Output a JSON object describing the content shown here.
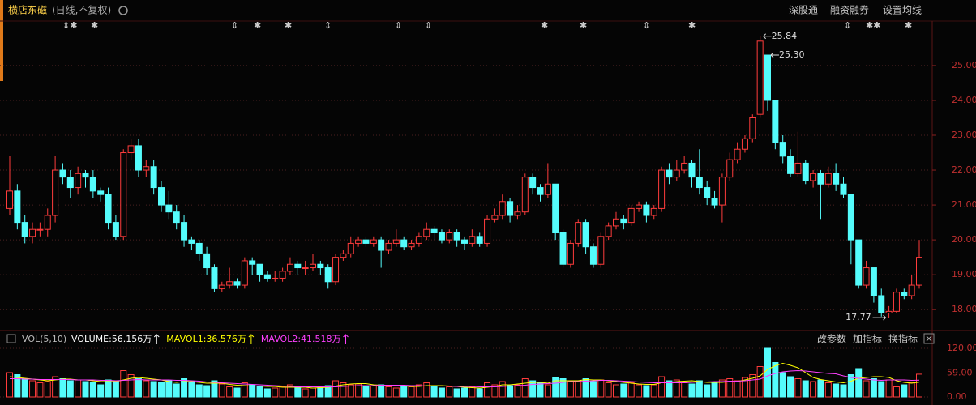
{
  "header": {
    "name": "横店东磁",
    "period": "(日线,不复权)",
    "links": [
      "深股通",
      "融资融券",
      "设置均线"
    ]
  },
  "chart_data": {
    "type": "candlestick",
    "up_color": "#ff3c3c",
    "down_color": "#54fcfc",
    "grid": true,
    "ylim": [
      17.47,
      26.23
    ],
    "yticks": [
      {
        "value": 18,
        "label": "18.00"
      },
      {
        "value": 19,
        "label": "19.00"
      },
      {
        "value": 20,
        "label": "20.00"
      },
      {
        "value": 21,
        "label": "21.00"
      },
      {
        "value": 22,
        "label": "22.00"
      },
      {
        "value": 23,
        "label": "23.00"
      },
      {
        "value": 24,
        "label": "24.00"
      },
      {
        "value": 25,
        "label": "25.00"
      }
    ],
    "open": [
      20.9,
      21.4,
      20.5,
      20.1,
      20.3,
      20.3,
      20.7,
      22.0,
      21.8,
      21.5,
      21.9,
      21.8,
      21.4,
      21.3,
      20.5,
      20.1,
      22.5,
      22.7,
      22.0,
      22.1,
      21.5,
      21.0,
      20.8,
      20.5,
      20.0,
      19.9,
      19.6,
      19.2,
      18.6,
      18.7,
      18.8,
      18.7,
      19.4,
      19.3,
      19.0,
      18.9,
      18.9,
      19.1,
      19.3,
      19.2,
      19.2,
      19.3,
      19.2,
      18.8,
      19.5,
      19.6,
      19.9,
      20.0,
      19.9,
      20.0,
      19.7,
      19.9,
      20.0,
      19.8,
      19.9,
      20.1,
      20.3,
      20.2,
      20.0,
      20.2,
      20.0,
      19.9,
      20.1,
      19.9,
      20.6,
      20.7,
      21.1,
      20.7,
      20.8,
      21.8,
      21.5,
      21.3,
      21.6,
      20.2,
      19.3,
      19.9,
      20.5,
      19.8,
      19.3,
      20.1,
      20.4,
      20.6,
      20.5,
      20.9,
      21.0,
      20.7,
      20.9,
      22.0,
      21.8,
      22.0,
      22.2,
      21.8,
      21.5,
      21.2,
      21.0,
      21.8,
      22.3,
      22.6,
      22.9,
      23.6,
      25.3,
      24.0,
      22.8,
      22.4,
      21.9,
      22.2,
      21.7,
      21.9,
      21.6,
      21.9,
      21.6,
      21.3,
      20.0,
      18.7,
      19.2,
      18.4,
      17.9,
      17.95,
      18.5,
      18.4,
      18.7
    ],
    "high": [
      22.4,
      21.6,
      20.7,
      20.5,
      20.5,
      20.9,
      22.4,
      22.2,
      22.0,
      22.1,
      22.0,
      22.0,
      21.5,
      21.5,
      20.7,
      22.6,
      22.9,
      22.9,
      22.3,
      22.3,
      21.7,
      21.4,
      21.0,
      20.7,
      20.1,
      20.0,
      19.8,
      19.3,
      18.8,
      19.2,
      18.9,
      19.5,
      19.5,
      19.3,
      19.1,
      19.1,
      19.2,
      19.5,
      19.4,
      19.4,
      19.6,
      19.4,
      19.3,
      19.6,
      19.7,
      20.1,
      20.1,
      20.1,
      20.1,
      20.1,
      20.0,
      20.3,
      20.1,
      20.0,
      20.2,
      20.5,
      20.4,
      20.3,
      20.3,
      20.3,
      20.1,
      20.3,
      20.2,
      20.7,
      20.9,
      21.3,
      21.2,
      21.0,
      21.9,
      21.9,
      21.6,
      22.2,
      21.6,
      20.3,
      20.0,
      20.6,
      20.6,
      19.9,
      20.2,
      20.5,
      20.8,
      20.7,
      21.0,
      21.1,
      21.1,
      21.0,
      22.1,
      22.2,
      22.3,
      22.4,
      22.3,
      22.6,
      21.7,
      21.4,
      21.9,
      22.5,
      22.8,
      23.0,
      23.6,
      25.84,
      25.3,
      24.0,
      23.0,
      22.6,
      23.1,
      22.3,
      22.0,
      22.0,
      22.1,
      22.2,
      21.8,
      21.3,
      20.0,
      19.4,
      19.2,
      18.6,
      18.1,
      18.6,
      18.6,
      19.0,
      20.0
    ],
    "low": [
      20.7,
      20.3,
      19.9,
      19.9,
      20.1,
      20.1,
      20.5,
      21.6,
      21.2,
      21.3,
      21.5,
      21.2,
      21.1,
      20.3,
      20.0,
      20.0,
      22.3,
      21.8,
      21.8,
      21.3,
      20.8,
      20.6,
      20.3,
      19.8,
      19.7,
      19.4,
      19.0,
      18.5,
      18.5,
      18.6,
      18.6,
      18.6,
      19.0,
      18.8,
      18.8,
      18.8,
      18.8,
      19.0,
      19.0,
      19.0,
      19.1,
      19.0,
      18.6,
      18.7,
      19.4,
      19.5,
      19.8,
      19.8,
      19.8,
      19.2,
      19.6,
      19.8,
      19.7,
      19.7,
      19.8,
      20.0,
      20.0,
      19.9,
      19.9,
      19.8,
      19.7,
      19.8,
      19.8,
      19.8,
      20.5,
      20.6,
      20.5,
      20.6,
      20.7,
      21.3,
      21.1,
      21.2,
      20.0,
      19.2,
      19.2,
      19.8,
      19.6,
      19.2,
      19.2,
      20.0,
      20.3,
      20.3,
      20.4,
      20.8,
      20.5,
      20.6,
      20.8,
      21.6,
      21.7,
      21.9,
      21.5,
      21.3,
      21.0,
      20.9,
      20.5,
      21.7,
      22.2,
      22.5,
      22.8,
      23.5,
      23.7,
      22.6,
      22.2,
      21.8,
      21.8,
      21.6,
      21.5,
      20.6,
      21.5,
      21.4,
      21.2,
      19.3,
      18.6,
      18.6,
      18.2,
      17.8,
      17.77,
      17.9,
      18.3,
      18.3,
      18.6
    ],
    "close": [
      21.4,
      20.5,
      20.1,
      20.3,
      20.3,
      20.7,
      22.0,
      21.8,
      21.5,
      21.9,
      21.8,
      21.4,
      21.3,
      20.5,
      20.1,
      22.5,
      22.7,
      22.0,
      22.1,
      21.5,
      21.0,
      20.8,
      20.5,
      20.0,
      19.9,
      19.6,
      19.2,
      18.6,
      18.7,
      18.8,
      18.7,
      19.4,
      19.3,
      19.0,
      18.9,
      18.9,
      19.1,
      19.3,
      19.2,
      19.2,
      19.3,
      19.2,
      18.8,
      19.5,
      19.6,
      19.9,
      20.0,
      19.9,
      20.0,
      19.7,
      19.9,
      20.0,
      19.8,
      19.9,
      20.1,
      20.3,
      20.2,
      20.0,
      20.2,
      20.0,
      19.9,
      20.1,
      19.9,
      20.6,
      20.7,
      21.1,
      20.7,
      20.8,
      21.8,
      21.5,
      21.3,
      21.6,
      20.2,
      19.3,
      19.9,
      20.5,
      19.8,
      19.3,
      20.1,
      20.4,
      20.6,
      20.5,
      20.9,
      21.0,
      20.7,
      20.9,
      22.0,
      21.8,
      22.0,
      22.2,
      21.8,
      21.5,
      21.2,
      21.0,
      21.8,
      22.3,
      22.6,
      22.9,
      23.5,
      25.7,
      24.0,
      22.8,
      22.4,
      21.9,
      22.2,
      21.7,
      21.9,
      21.6,
      21.9,
      21.6,
      21.3,
      20.0,
      18.7,
      19.2,
      18.4,
      17.9,
      17.95,
      18.5,
      18.4,
      18.7,
      19.5
    ],
    "annotations": [
      {
        "label": "25.84",
        "value": 25.84,
        "on": "high"
      },
      {
        "label": "25.30",
        "value": 25.3,
        "on": "high"
      },
      {
        "label": "17.77",
        "value": 17.77,
        "on": "low"
      }
    ],
    "volume_panel": {
      "title": "VOL(5,10)",
      "readouts": [
        {
          "label": "VOLUME:56.156万",
          "color": "#ffffff"
        },
        {
          "label": "MAVOL1:36.576万",
          "color": "#ffff00"
        },
        {
          "label": "MAVOL2:41.518万",
          "color": "#ff40ff"
        }
      ],
      "buttons": [
        "改参数",
        "加指标",
        "换指标"
      ],
      "ylim": [
        0,
        124
      ],
      "yticks": [
        {
          "value": 0,
          "label": "0.00"
        },
        {
          "value": 59,
          "label": "59.00"
        },
        {
          "value": 120,
          "label": "120.00"
        }
      ],
      "volume": [
        60,
        55,
        45,
        40,
        35,
        38,
        50,
        45,
        40,
        42,
        38,
        35,
        30,
        42,
        40,
        65,
        55,
        45,
        40,
        38,
        35,
        40,
        32,
        45,
        38,
        30,
        28,
        40,
        32,
        25,
        22,
        35,
        30,
        25,
        20,
        22,
        25,
        30,
        22,
        20,
        22,
        25,
        28,
        40,
        35,
        30,
        32,
        25,
        28,
        30,
        25,
        22,
        28,
        25,
        30,
        35,
        28,
        22,
        25,
        20,
        22,
        25,
        20,
        35,
        30,
        38,
        28,
        30,
        45,
        40,
        35,
        30,
        48,
        45,
        38,
        40,
        45,
        38,
        42,
        35,
        30,
        32,
        35,
        30,
        28,
        30,
        50,
        40,
        42,
        35,
        32,
        40,
        30,
        35,
        42,
        45,
        40,
        48,
        55,
        75,
        120,
        85,
        60,
        50,
        45,
        40,
        38,
        42,
        35,
        32,
        30,
        55,
        70,
        40,
        45,
        38,
        42,
        25,
        30,
        35,
        56.156
      ],
      "series": [
        {
          "name": "MAVOL1",
          "color": "#ffff00",
          "values": [
            50,
            48,
            46,
            44,
            42,
            40,
            42,
            44,
            44,
            42,
            42,
            40,
            38,
            38,
            38,
            42,
            46,
            48,
            46,
            44,
            42,
            38,
            36,
            38,
            38,
            36,
            34,
            34,
            34,
            31,
            29,
            28,
            27,
            27,
            26,
            26,
            24,
            24,
            24,
            24,
            22,
            23,
            24,
            27,
            30,
            32,
            33,
            33,
            30,
            29,
            28,
            27,
            27,
            26,
            26,
            28,
            28,
            28,
            27,
            26,
            24,
            23,
            22,
            24,
            26,
            30,
            30,
            32,
            34,
            36,
            36,
            34,
            40,
            40,
            40,
            40,
            43,
            42,
            42,
            40,
            38,
            36,
            34,
            32,
            31,
            31,
            35,
            36,
            38,
            39,
            40,
            38,
            36,
            36,
            36,
            38,
            38,
            42,
            46,
            52,
            68,
            77,
            83,
            78,
            72,
            60,
            48,
            43,
            40,
            37,
            35,
            39,
            46,
            48,
            50,
            50,
            48,
            40,
            36,
            34,
            36.576
          ]
        },
        {
          "name": "MAVOL2",
          "color": "#ff40ff",
          "values": [
            45,
            45,
            44,
            44,
            43,
            43,
            43,
            43,
            43,
            42,
            42,
            42,
            41,
            41,
            40,
            41,
            42,
            43,
            42,
            42,
            42,
            42,
            41,
            41,
            40,
            39,
            37,
            36,
            35,
            34,
            33,
            32,
            31,
            30,
            29,
            28,
            27,
            26,
            25,
            25,
            25,
            25,
            25,
            25,
            26,
            27,
            28,
            28,
            28,
            29,
            29,
            29,
            29,
            28,
            28,
            27,
            27,
            27,
            27,
            26,
            26,
            26,
            25,
            25,
            25,
            26,
            27,
            28,
            29,
            31,
            32,
            33,
            34,
            36,
            38,
            38,
            39,
            40,
            41,
            41,
            40,
            39,
            38,
            37,
            36,
            35,
            35,
            35,
            35,
            35,
            36,
            37,
            37,
            38,
            38,
            39,
            39,
            40,
            42,
            44,
            52,
            58,
            62,
            64,
            65,
            64,
            62,
            60,
            58,
            57,
            52,
            48,
            46,
            44,
            42,
            41,
            42,
            42,
            42,
            41,
            41.518
          ]
        }
      ]
    }
  }
}
